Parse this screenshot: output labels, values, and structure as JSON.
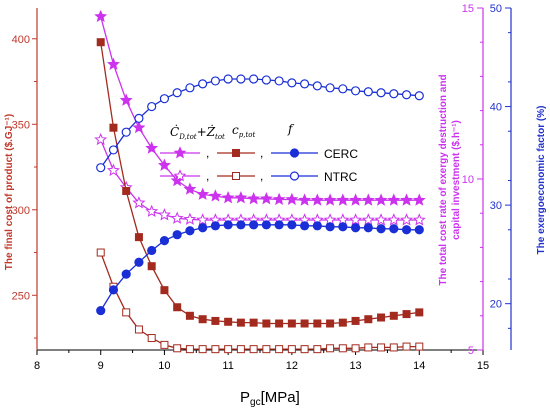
{
  "chart_data": {
    "type": "line",
    "xlabel_main": "P",
    "xlabel_sub": "gc",
    "xlabel_unit": "[MPa]",
    "xlim": [
      8,
      15
    ],
    "x_ticks": [
      "8",
      "9",
      "10",
      "11",
      "12",
      "13",
      "14",
      "15"
    ],
    "axes": {
      "left": {
        "label": "The final cost of product ($.GJ⁻¹)",
        "lim": [
          218,
          418
        ],
        "ticks": [
          "250",
          "300",
          "350",
          "400"
        ],
        "color": "#c0392b"
      },
      "right1": {
        "label_line1": "The total cost rate of exergy destruction and",
        "label_line2": "capital investment ($.h⁻¹)",
        "lim": [
          5,
          15
        ],
        "ticks": [
          "5",
          "10",
          "15"
        ],
        "color": "#cc33ee"
      },
      "right2": {
        "label": "The exergoeconomic factor (%)",
        "lim": [
          15.3,
          50
        ],
        "ticks": [
          "20",
          "30",
          "40",
          "50"
        ],
        "color": "#2233cc"
      }
    },
    "legend": {
      "sym_cd": "Ċ",
      "sym_cd_sub": "D,tot",
      "sym_z": "Ż",
      "sym_z_sub": "tot",
      "sym_cp": "c",
      "sym_cp_sub": "p,tot",
      "sym_f": "f",
      "plus": "+",
      "comma": ",",
      "cerc": "CERC",
      "ntrc": "NTRC"
    },
    "series": [
      {
        "name": "CERC",
        "quantity": "cost_rate_total",
        "axis": "right1",
        "color": "#cc33ee",
        "marker": "star-filled",
        "x": [
          9.0,
          9.2,
          9.4,
          9.6,
          9.8,
          10.0,
          10.2,
          10.4,
          10.6,
          10.8,
          11.0,
          11.2,
          11.4,
          11.6,
          11.8,
          12.0,
          12.2,
          12.4,
          12.6,
          12.8,
          13.0,
          13.2,
          13.4,
          13.6,
          13.8,
          14.0
        ],
        "y": [
          14.75,
          13.35,
          12.3,
          11.5,
          10.9,
          10.4,
          9.95,
          9.7,
          9.55,
          9.5,
          9.45,
          9.45,
          9.42,
          9.42,
          9.4,
          9.4,
          9.38,
          9.38,
          9.38,
          9.38,
          9.38,
          9.38,
          9.38,
          9.38,
          9.38,
          9.38
        ]
      },
      {
        "name": "NTRC",
        "quantity": "cost_rate_total",
        "axis": "right1",
        "color": "#cc33ee",
        "marker": "star-open",
        "x": [
          9.0,
          9.2,
          9.4,
          9.6,
          9.8,
          10.0,
          10.2,
          10.4,
          10.6,
          10.8,
          11.0,
          11.2,
          11.4,
          11.6,
          11.8,
          12.0,
          12.2,
          12.4,
          12.6,
          12.8,
          13.0,
          13.2,
          13.4,
          13.6,
          13.8,
          14.0
        ],
        "y": [
          11.15,
          10.25,
          9.75,
          9.3,
          9.05,
          8.95,
          8.85,
          8.82,
          8.8,
          8.8,
          8.8,
          8.8,
          8.8,
          8.8,
          8.8,
          8.8,
          8.8,
          8.8,
          8.8,
          8.8,
          8.8,
          8.8,
          8.8,
          8.8,
          8.8,
          8.8
        ]
      },
      {
        "name": "CERC",
        "quantity": "final_cost",
        "axis": "left",
        "color": "#a32a1f",
        "marker": "square-filled",
        "x": [
          9.0,
          9.2,
          9.4,
          9.6,
          9.8,
          10.0,
          10.2,
          10.4,
          10.6,
          10.8,
          11.0,
          11.2,
          11.4,
          11.6,
          11.8,
          12.0,
          12.2,
          12.4,
          12.6,
          12.8,
          13.0,
          13.2,
          13.4,
          13.6,
          13.8,
          14.0
        ],
        "y": [
          398,
          348,
          311,
          284,
          267,
          253,
          243,
          238,
          236,
          235,
          234.5,
          234,
          234,
          233.5,
          233.5,
          233.5,
          233.5,
          233.5,
          233.5,
          234,
          235,
          236,
          237,
          238,
          239,
          240
        ]
      },
      {
        "name": "NTRC",
        "quantity": "final_cost",
        "axis": "left",
        "color": "#a32a1f",
        "marker": "square-open",
        "x": [
          9.0,
          9.2,
          9.4,
          9.6,
          9.8,
          10.0,
          10.2,
          10.4,
          10.6,
          10.8,
          11.0,
          11.2,
          11.4,
          11.6,
          11.8,
          12.0,
          12.2,
          12.4,
          12.6,
          12.8,
          13.0,
          13.2,
          13.4,
          13.6,
          13.8,
          14.0
        ],
        "y": [
          275,
          255,
          240,
          230,
          225,
          221,
          219,
          218.5,
          218.5,
          218.5,
          218.5,
          218.5,
          218.5,
          218.5,
          218.5,
          218.5,
          218.5,
          218.5,
          219,
          219,
          219,
          219.5,
          219.5,
          219.5,
          220,
          220
        ]
      },
      {
        "name": "CERC",
        "quantity": "exergoeconomic_factor",
        "axis": "right2",
        "color": "#1a2fd6",
        "marker": "circle-filled",
        "x": [
          9.0,
          9.2,
          9.4,
          9.6,
          9.8,
          10.0,
          10.2,
          10.4,
          10.6,
          10.8,
          11.0,
          11.2,
          11.4,
          11.6,
          11.8,
          12.0,
          12.2,
          12.4,
          12.6,
          12.8,
          13.0,
          13.2,
          13.4,
          13.6,
          13.8,
          14.0
        ],
        "y": [
          19.3,
          21.4,
          23.0,
          24.2,
          25.4,
          26.4,
          27.0,
          27.4,
          27.7,
          27.9,
          28.0,
          28.0,
          28.0,
          28.0,
          28.0,
          28.0,
          27.9,
          27.9,
          27.8,
          27.8,
          27.7,
          27.7,
          27.6,
          27.6,
          27.5,
          27.5
        ]
      },
      {
        "name": "NTRC",
        "quantity": "exergoeconomic_factor",
        "axis": "right2",
        "color": "#1a2fd6",
        "marker": "circle-open",
        "x": [
          9.0,
          9.2,
          9.4,
          9.6,
          9.8,
          10.0,
          10.2,
          10.4,
          10.6,
          10.8,
          11.0,
          11.2,
          11.4,
          11.6,
          11.8,
          12.0,
          12.2,
          12.4,
          12.6,
          12.8,
          13.0,
          13.2,
          13.4,
          13.6,
          13.8,
          14.0
        ],
        "y": [
          33.8,
          35.6,
          37.4,
          38.8,
          40.0,
          40.8,
          41.4,
          41.9,
          42.3,
          42.6,
          42.8,
          42.8,
          42.8,
          42.7,
          42.6,
          42.4,
          42.3,
          42.1,
          41.9,
          41.8,
          41.6,
          41.5,
          41.4,
          41.3,
          41.2,
          41.1
        ]
      }
    ]
  }
}
